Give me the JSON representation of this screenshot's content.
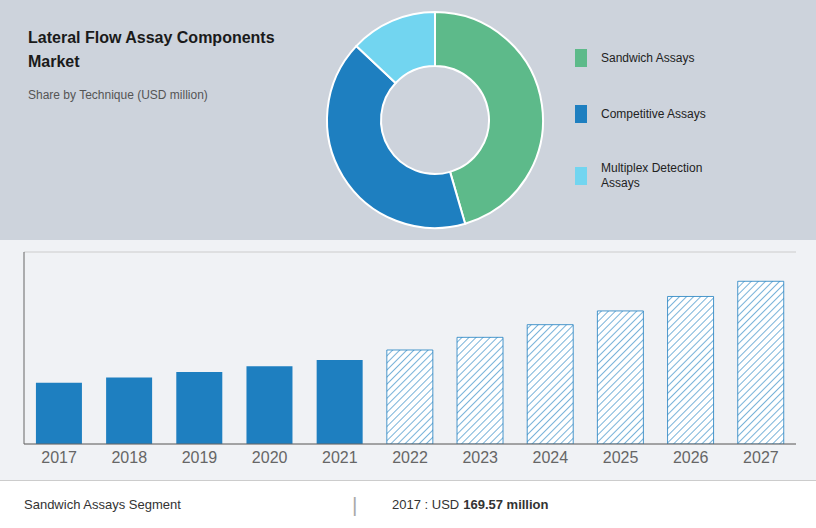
{
  "chart_data": [
    {
      "type": "pie",
      "title": "Lateral Flow Assay Components\nMarket",
      "subtitle": "Share by Technique (USD million)",
      "categories": [
        "Sandwich Assays",
        "Competitive Assays",
        "Multiplex Detection\nAssays"
      ],
      "values": [
        0.455,
        0.415,
        0.13
      ],
      "colors": [
        "#5dba8a",
        "#1e7fc0",
        "#72d5f0"
      ],
      "legend": "right"
    },
    {
      "type": "bar",
      "categories": [
        "2017",
        "2018",
        "2019",
        "2020",
        "2021",
        "2022",
        "2023",
        "2024",
        "2025",
        "2026",
        "2027"
      ],
      "series": [
        {
          "color": "#1e7fc0",
          "values": [
            169.57,
            184,
            199,
            215,
            232,
            null,
            null,
            null,
            null,
            null,
            null
          ]
        },
        {
          "color": "#1e7fc0",
          "line_style": "hatched",
          "values": [
            null,
            null,
            null,
            null,
            null,
            260,
            295,
            330,
            368,
            408,
            450
          ]
        }
      ],
      "ylim": [
        0,
        531
      ],
      "yticks": [
        0,
        100,
        200,
        300,
        400,
        500
      ],
      "grid": true,
      "tick_labels": "x",
      "annotations": [
        "Sandwich Assays Segment",
        "|",
        "2017 : USD",
        "169.57 million"
      ]
    }
  ]
}
